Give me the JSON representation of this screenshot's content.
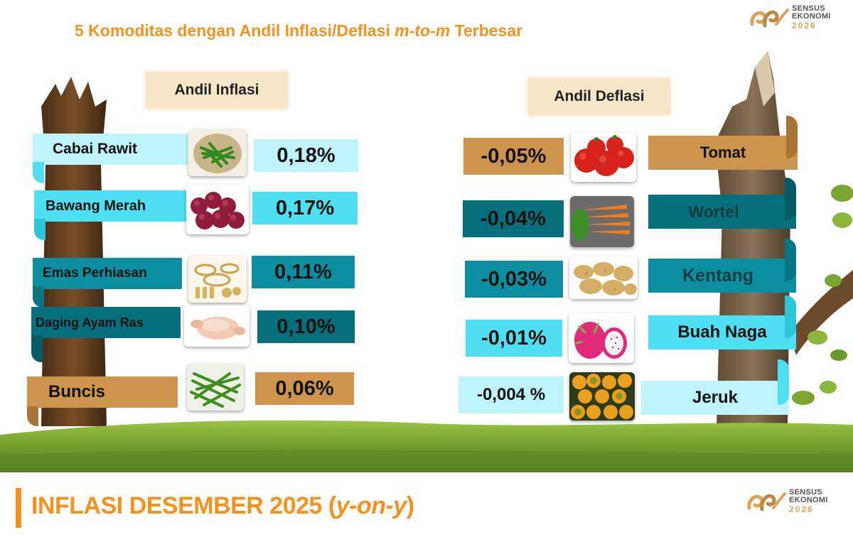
{
  "title": {
    "prefix": "5 Komoditas dengan Andil Inflasi/Deflasi ",
    "italic": "m-to-m",
    "suffix": " Terbesar"
  },
  "logo": {
    "line1": "SENSUS",
    "line2": "EKONOMI",
    "line3": "2026"
  },
  "inflation": {
    "heading": "Andil Inflasi",
    "items": [
      {
        "name": "Cabai Rawit",
        "value": "0,18%",
        "icon": "chili-icon"
      },
      {
        "name": "Bawang Merah",
        "value": "0,17%",
        "icon": "shallot-icon"
      },
      {
        "name": "Emas Perhiasan",
        "value": "0,11%",
        "icon": "gold-jewelry-icon"
      },
      {
        "name": "Daging Ayam Ras",
        "value": "0,10%",
        "icon": "chicken-meat-icon"
      },
      {
        "name": "Buncis",
        "value": "0,06%",
        "icon": "green-bean-icon"
      }
    ]
  },
  "deflation": {
    "heading": "Andil Deflasi",
    "items": [
      {
        "name": "Tomat",
        "value": "-0,05%",
        "icon": "tomato-icon"
      },
      {
        "name": "Wortel",
        "value": "-0,04%",
        "icon": "carrot-icon"
      },
      {
        "name": "Kentang",
        "value": "-0,03%",
        "icon": "potato-icon"
      },
      {
        "name": "Buah Naga",
        "value": "-0,01%",
        "icon": "dragon-fruit-icon"
      },
      {
        "name": "Jeruk",
        "value": "-0,004 %",
        "icon": "orange-icon"
      }
    ]
  },
  "footer": {
    "title": "INFLASI DESEMBER 2025 (",
    "italic": "y-on-y",
    "close": ")"
  },
  "colors": {
    "accent_orange": "#f5921d",
    "light_cyan": "#bff3fb",
    "cyan": "#4ee0f2",
    "teal": "#0a8ea0",
    "dark_teal": "#066f7c",
    "tan": "#cd944d",
    "grass": "#6f9a2a"
  }
}
